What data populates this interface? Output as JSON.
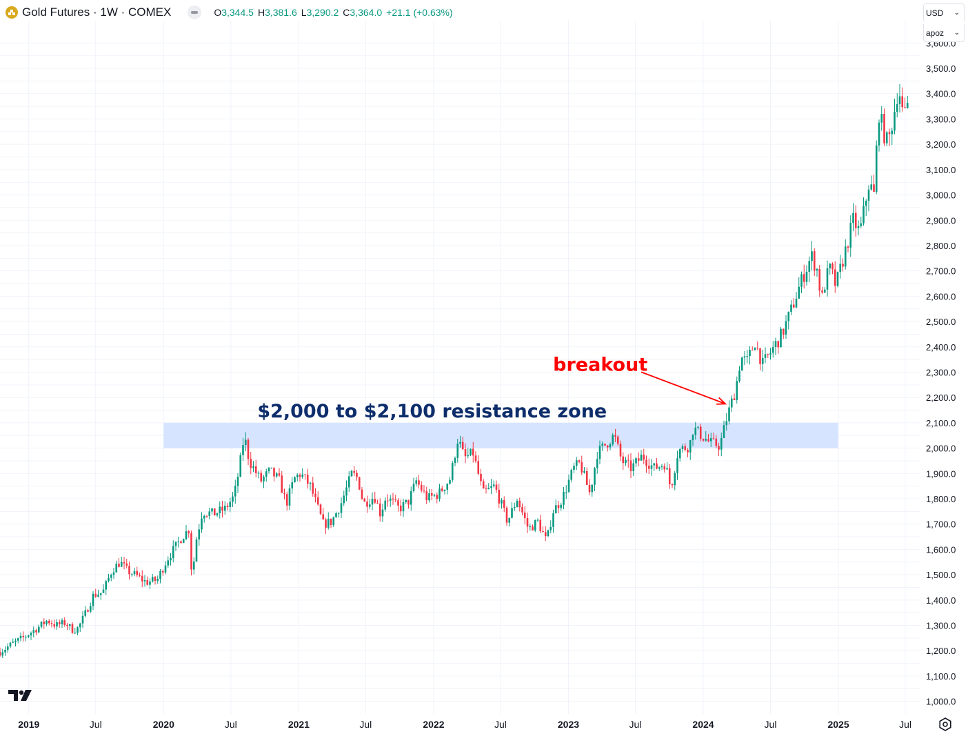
{
  "header": {
    "symbol_title": "Gold Futures · 1W · COMEX",
    "ohlc": {
      "o_label": "O",
      "o_value": "3,344.5",
      "h_label": "H",
      "h_value": "3,381.6",
      "l_label": "L",
      "l_value": "3,290.2",
      "c_label": "C",
      "c_value": "3,364.0",
      "change": "+21.1 (+0.63%)"
    },
    "logo_icon": "gold-coin-icon",
    "collapse_icon": "collapse-pill-icon"
  },
  "controls": {
    "currency": "USD",
    "scale": "apoz"
  },
  "colors": {
    "up": "#089981",
    "down": "#f23645",
    "grid": "#f0f3fa",
    "zone": "#d6e4ff",
    "annotation_navy": "#0d2d6b",
    "annotation_red": "#ff0000"
  },
  "chart_data": {
    "type": "candlestick",
    "title": "",
    "xlabel": "",
    "ylabel": "",
    "ylim": [
      950,
      3620
    ],
    "xlim": [
      "2018-10-15",
      "2025-08-11"
    ],
    "grid": true,
    "y_ticks": [
      "1,000.0",
      "1,100.0",
      "1,200.0",
      "1,300.0",
      "1,400.0",
      "1,500.0",
      "1,600.0",
      "1,700.0",
      "1,800.0",
      "1,900.0",
      "2,000.0",
      "2,100.0",
      "2,200.0",
      "2,300.0",
      "2,400.0",
      "2,500.0",
      "2,600.0",
      "2,700.0",
      "2,800.0",
      "2,900.0",
      "3,000.0",
      "3,100.0",
      "3,200.0",
      "3,300.0",
      "3,400.0",
      "3,500.0",
      "3,600.0"
    ],
    "x_ticks": [
      {
        "label": "2019",
        "date": "2019-01-01",
        "bold": true
      },
      {
        "label": "Jul",
        "date": "2019-07-01",
        "bold": false
      },
      {
        "label": "2020",
        "date": "2020-01-01",
        "bold": true
      },
      {
        "label": "Jul",
        "date": "2020-07-01",
        "bold": false
      },
      {
        "label": "2021",
        "date": "2021-01-01",
        "bold": true
      },
      {
        "label": "Jul",
        "date": "2021-07-01",
        "bold": false
      },
      {
        "label": "2022",
        "date": "2022-01-01",
        "bold": true
      },
      {
        "label": "Jul",
        "date": "2022-07-01",
        "bold": false
      },
      {
        "label": "2023",
        "date": "2023-01-01",
        "bold": true
      },
      {
        "label": "Jul",
        "date": "2023-07-01",
        "bold": false
      },
      {
        "label": "2024",
        "date": "2024-01-01",
        "bold": true
      },
      {
        "label": "Jul",
        "date": "2024-07-01",
        "bold": false
      },
      {
        "label": "2025",
        "date": "2025-01-01",
        "bold": true
      },
      {
        "label": "Jul",
        "date": "2025-07-01",
        "bold": false
      }
    ],
    "close_anchors": [
      [
        "2018-10-15",
        1195
      ],
      [
        "2018-11-15",
        1225
      ],
      [
        "2018-12-15",
        1250
      ],
      [
        "2019-01-20",
        1285
      ],
      [
        "2019-02-20",
        1320
      ],
      [
        "2019-03-15",
        1300
      ],
      [
        "2019-04-10",
        1310
      ],
      [
        "2019-05-01",
        1280
      ],
      [
        "2019-05-15",
        1290
      ],
      [
        "2019-06-01",
        1340
      ],
      [
        "2019-06-25",
        1420
      ],
      [
        "2019-07-20",
        1430
      ],
      [
        "2019-08-15",
        1520
      ],
      [
        "2019-09-05",
        1550
      ],
      [
        "2019-09-25",
        1515
      ],
      [
        "2019-10-15",
        1500
      ],
      [
        "2019-11-15",
        1470
      ],
      [
        "2019-12-15",
        1480
      ],
      [
        "2020-01-10",
        1560
      ],
      [
        "2020-02-20",
        1650
      ],
      [
        "2020-03-10",
        1680
      ],
      [
        "2020-03-18",
        1480
      ],
      [
        "2020-03-28",
        1630
      ],
      [
        "2020-04-15",
        1750
      ],
      [
        "2020-05-15",
        1740
      ],
      [
        "2020-06-15",
        1760
      ],
      [
        "2020-07-10",
        1810
      ],
      [
        "2020-07-25",
        1930
      ],
      [
        "2020-08-06",
        2050
      ],
      [
        "2020-08-20",
        1950
      ],
      [
        "2020-09-20",
        1870
      ],
      [
        "2020-10-15",
        1910
      ],
      [
        "2020-11-10",
        1870
      ],
      [
        "2020-11-28",
        1780
      ],
      [
        "2020-12-20",
        1880
      ],
      [
        "2021-01-06",
        1900
      ],
      [
        "2021-02-01",
        1850
      ],
      [
        "2021-03-08",
        1700
      ],
      [
        "2021-03-31",
        1710
      ],
      [
        "2021-04-25",
        1780
      ],
      [
        "2021-05-25",
        1900
      ],
      [
        "2021-06-10",
        1880
      ],
      [
        "2021-06-25",
        1780
      ],
      [
        "2021-07-25",
        1810
      ],
      [
        "2021-08-10",
        1740
      ],
      [
        "2021-08-25",
        1810
      ],
      [
        "2021-09-30",
        1760
      ],
      [
        "2021-10-25",
        1790
      ],
      [
        "2021-11-15",
        1870
      ],
      [
        "2021-12-15",
        1800
      ],
      [
        "2022-01-15",
        1820
      ],
      [
        "2022-02-15",
        1880
      ],
      [
        "2022-03-08",
        2040
      ],
      [
        "2022-03-25",
        1960
      ],
      [
        "2022-04-18",
        1980
      ],
      [
        "2022-05-15",
        1820
      ],
      [
        "2022-06-15",
        1850
      ],
      [
        "2022-07-20",
        1710
      ],
      [
        "2022-08-15",
        1800
      ],
      [
        "2022-09-15",
        1680
      ],
      [
        "2022-10-10",
        1710
      ],
      [
        "2022-11-03",
        1630
      ],
      [
        "2022-11-20",
        1750
      ],
      [
        "2022-12-15",
        1800
      ],
      [
        "2023-01-15",
        1920
      ],
      [
        "2023-02-01",
        1940
      ],
      [
        "2023-02-28",
        1820
      ],
      [
        "2023-03-20",
        1980
      ],
      [
        "2023-04-15",
        2020
      ],
      [
        "2023-05-05",
        2050
      ],
      [
        "2023-05-25",
        1950
      ],
      [
        "2023-06-20",
        1920
      ],
      [
        "2023-07-20",
        1970
      ],
      [
        "2023-08-20",
        1920
      ],
      [
        "2023-09-20",
        1940
      ],
      [
        "2023-10-05",
        1840
      ],
      [
        "2023-10-25",
        1990
      ],
      [
        "2023-11-25",
        2010
      ],
      [
        "2023-12-05",
        2080
      ],
      [
        "2023-12-20",
        2060
      ],
      [
        "2024-01-20",
        2020
      ],
      [
        "2024-02-15",
        2010
      ],
      [
        "2024-03-05",
        2120
      ],
      [
        "2024-03-28",
        2230
      ],
      [
        "2024-04-12",
        2360
      ],
      [
        "2024-04-28",
        2340
      ],
      [
        "2024-05-20",
        2420
      ],
      [
        "2024-06-10",
        2330
      ],
      [
        "2024-07-15",
        2410
      ],
      [
        "2024-08-01",
        2450
      ],
      [
        "2024-08-25",
        2540
      ],
      [
        "2024-09-20",
        2650
      ],
      [
        "2024-10-20",
        2760
      ],
      [
        "2024-11-08",
        2690
      ],
      [
        "2024-11-15",
        2570
      ],
      [
        "2024-11-28",
        2670
      ],
      [
        "2024-12-10",
        2710
      ],
      [
        "2024-12-25",
        2640
      ],
      [
        "2025-01-20",
        2780
      ],
      [
        "2025-02-10",
        2900
      ],
      [
        "2025-02-28",
        2850
      ],
      [
        "2025-03-25",
        3050
      ],
      [
        "2025-04-07",
        3000
      ],
      [
        "2025-04-20",
        3330
      ],
      [
        "2025-05-05",
        3240
      ],
      [
        "2025-05-15",
        3200
      ],
      [
        "2025-05-30",
        3310
      ],
      [
        "2025-06-13",
        3430
      ],
      [
        "2025-06-27",
        3290
      ],
      [
        "2025-07-07",
        3364
      ]
    ]
  },
  "annotations": {
    "zone": {
      "low": 2000,
      "high": 2100,
      "from": "2020-01-01",
      "to": "2024-12-31",
      "label": "$2,000 to $2,100 resistance zone"
    },
    "breakout": {
      "label": "breakout",
      "arrow_to_date": "2024-03-01",
      "arrow_to_value": 2175
    }
  },
  "icons": {
    "brand": "tradingview-logo-icon",
    "settings": "settings-gear-icon"
  }
}
